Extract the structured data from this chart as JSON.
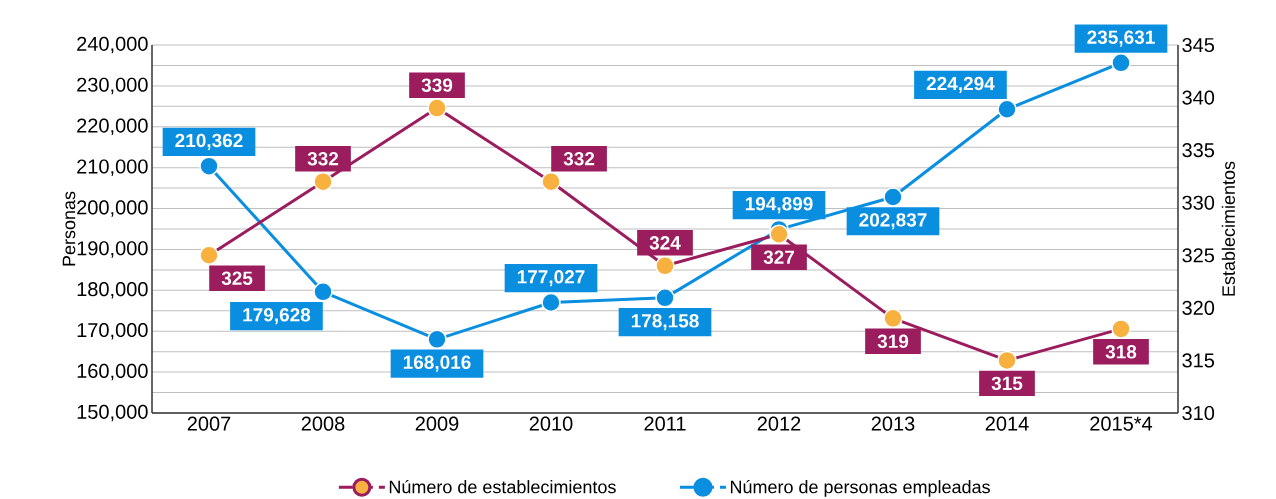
{
  "chart_data": {
    "type": "line",
    "ylabel": "Personas",
    "y2label": "Establecimientos",
    "categories": [
      "2007",
      "2008",
      "2009",
      "2010",
      "2011",
      "2012",
      "2013",
      "2014",
      "2015*4"
    ],
    "series": [
      {
        "name": "Número de establecimientos",
        "color": "#9b1d5e",
        "axis": "y2",
        "colors": [
          "#f8b03e",
          "#f8b03e",
          "#f8b03e",
          "#f8b03e",
          "#f8b03e",
          "#f8b03e",
          "#f8b03e",
          "#f8b03e",
          "#f8b03e"
        ],
        "values": [
          325,
          332,
          339,
          332,
          324,
          327,
          319,
          315,
          318
        ],
        "value_labels": [
          "325",
          "332",
          "339",
          "332",
          "324",
          "327",
          "319",
          "315",
          "318"
        ]
      },
      {
        "name": "Número de personas empleadas",
        "color": "#0a8fe0",
        "values": [
          210362,
          179628,
          168016,
          177027,
          178158,
          194899,
          202837,
          224294,
          235631
        ],
        "value_labels": [
          "210,362",
          "179,628",
          "168,016",
          "177,027",
          "178,158",
          "194,899",
          "202,837",
          "224,294",
          "235,631"
        ]
      }
    ],
    "ylim": [
      150000,
      240000
    ],
    "yticks": [
      {
        "value": 150000,
        "label": "150,000"
      },
      {
        "value": 160000,
        "label": "160,000"
      },
      {
        "value": 170000,
        "label": "170,000"
      },
      {
        "value": 180000,
        "label": "180,000"
      },
      {
        "value": 190000,
        "label": "190,000"
      },
      {
        "value": 200000,
        "label": "200,000"
      },
      {
        "value": 210000,
        "label": "210,000"
      },
      {
        "value": 220000,
        "label": "220,000"
      },
      {
        "value": 230000,
        "label": "230,000"
      },
      {
        "value": 240000,
        "label": "240,000"
      }
    ],
    "y2lim": [
      310,
      345
    ],
    "y2ticks": [
      310,
      315,
      320,
      325,
      330,
      335,
      340,
      345
    ],
    "grid": "y",
    "legend": "bottom",
    "marker": "circle",
    "line_style": "solid"
  }
}
